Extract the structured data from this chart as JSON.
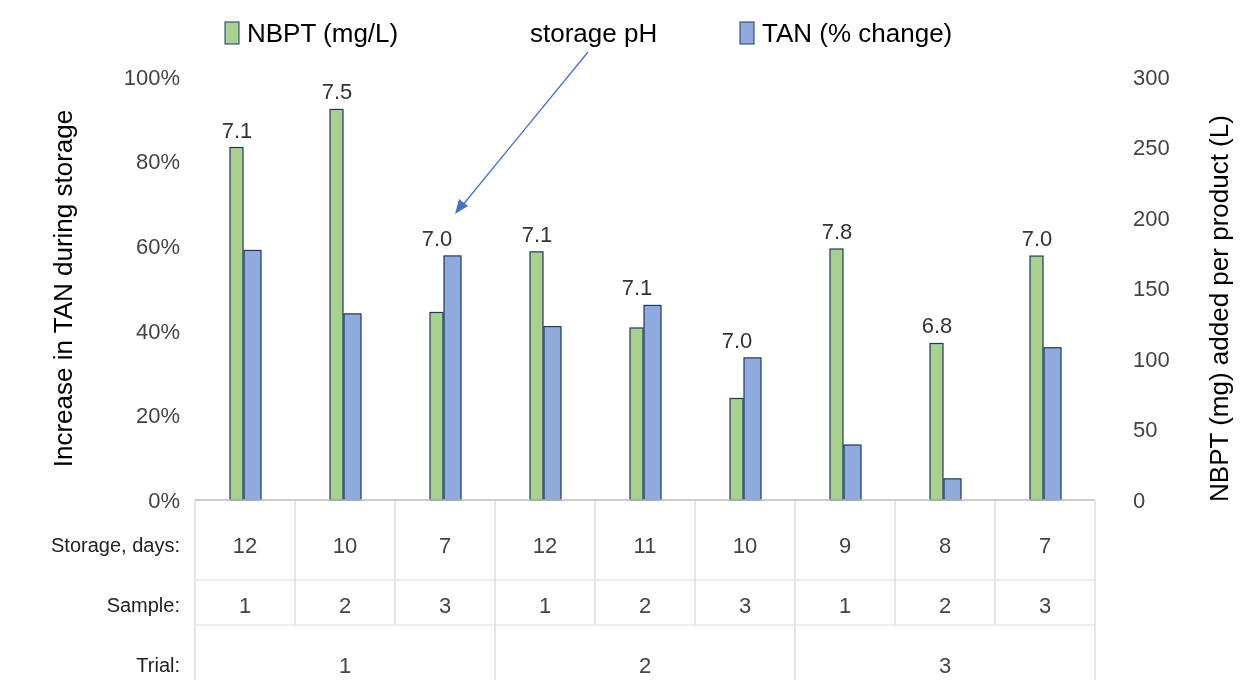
{
  "chart_data": {
    "type": "bar",
    "categories": [
      "12",
      "10",
      "7",
      "12",
      "11",
      "10",
      "9",
      "8",
      "7"
    ],
    "series": [
      {
        "name": "NBPT (mg/L)",
        "color": "#a9d18e",
        "axis": "y2",
        "values": [
          250,
          277,
          133,
          176,
          122,
          72,
          178,
          111,
          173
        ]
      },
      {
        "name": "TAN  (% change)",
        "color": "#8faadc",
        "values": [
          59,
          44,
          57.7,
          41,
          46,
          33.6,
          13,
          5,
          36
        ]
      }
    ],
    "ylabel": "Increase in TAN during storage",
    "y2label": "NBPT (mg) added per product (L)",
    "ylim": [
      0,
      100
    ],
    "yticks": [
      {
        "value": 0,
        "label": "0%"
      },
      {
        "value": 20,
        "label": "20%"
      },
      {
        "value": 40,
        "label": "40%"
      },
      {
        "value": 60,
        "label": "60%"
      },
      {
        "value": 80,
        "label": "80%"
      },
      {
        "value": 100,
        "label": "100%"
      }
    ],
    "y2lim": [
      0,
      300
    ],
    "y2ticks": [
      0,
      50,
      100,
      150,
      200,
      250,
      300
    ],
    "legend": "top",
    "grid": false,
    "annotations": [
      "storage pH",
      "7.1",
      "7.5",
      "7.0",
      "7.1",
      "7.1",
      "7.0",
      "7.8",
      "6.8",
      "7.0",
      "Storage, days:",
      "Sample:",
      "Trial:",
      "1",
      "2",
      "3",
      "1",
      "2",
      "3",
      "1",
      "2",
      "3",
      "1",
      "2",
      "3"
    ]
  }
}
